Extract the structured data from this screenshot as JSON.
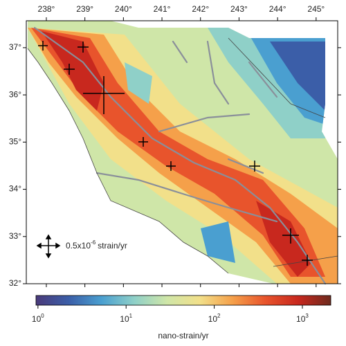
{
  "map": {
    "xlim": [
      237.48,
      245.56
    ],
    "ylim": [
      32,
      37.57
    ],
    "xticks": [
      {
        "value": 238,
        "label": "238°"
      },
      {
        "value": 239,
        "label": "239°"
      },
      {
        "value": 240,
        "label": "240°"
      },
      {
        "value": 241,
        "label": "241°"
      },
      {
        "value": 242,
        "label": "242°"
      },
      {
        "value": 243,
        "label": "243°"
      },
      {
        "value": 244,
        "label": "244°"
      },
      {
        "value": 245,
        "label": "245°"
      }
    ],
    "yticks": [
      {
        "value": 37,
        "label": "37°"
      },
      {
        "value": 36,
        "label": "36°"
      },
      {
        "value": 35,
        "label": "35°"
      },
      {
        "value": 34,
        "label": "34°"
      },
      {
        "value": 33,
        "label": "33°"
      },
      {
        "value": 32,
        "label": "32°"
      }
    ],
    "scale_label": {
      "text": "0.5x10",
      "exponent": "-6",
      "unit": "strain/yr"
    }
  },
  "colorbar": {
    "log_scale": true,
    "lim": [
      0.95,
      2100
    ],
    "colors": [
      "#4a3a7a",
      "#3b5ea8",
      "#4a9fd0",
      "#8fd0c8",
      "#cfe6a8",
      "#f2e08a",
      "#f5a04a",
      "#e8542c",
      "#c8281e",
      "#6e2a1e"
    ],
    "ticks": [
      {
        "value": 1,
        "label": "10",
        "exponent": "0"
      },
      {
        "value": 10,
        "label": "10",
        "exponent": "1"
      },
      {
        "value": 100,
        "label": "10",
        "exponent": "2"
      },
      {
        "value": 1000,
        "label": "10",
        "exponent": "3"
      }
    ],
    "label": "nano-strain/yr"
  }
}
